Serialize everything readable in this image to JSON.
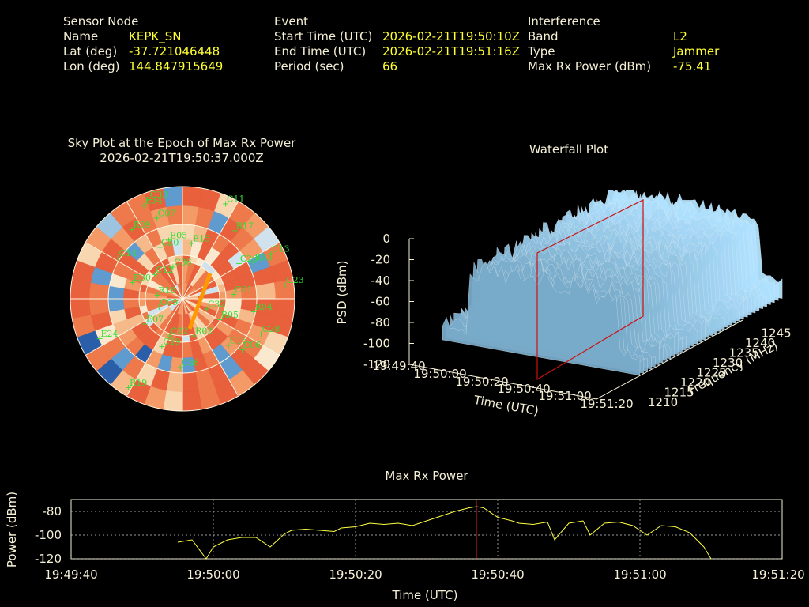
{
  "sensor": {
    "header": "Sensor Node",
    "name_label": "Name",
    "name": "KEPK_SN",
    "lat_label": "Lat (deg)",
    "lat": "-37.721046448",
    "lon_label": "Lon (deg)",
    "lon": "144.847915649"
  },
  "event": {
    "header": "Event",
    "start_label": "Start Time (UTC)",
    "start": "2026-02-21T19:50:10Z",
    "end_label": "End Time (UTC)",
    "end": "2026-02-21T19:51:16Z",
    "period_label": "Period (sec)",
    "period": "66"
  },
  "interference": {
    "header": "Interference",
    "band_label": "Band",
    "band": "L2",
    "type_label": "Type",
    "type": "Jammer",
    "maxrx_label": "Max Rx Power (dBm)",
    "maxrx": "-75.41"
  },
  "skyplot": {
    "title": "Sky Plot at the Epoch of Max Rx Power",
    "epoch": "2026-02-21T19:50:37.000Z",
    "satellites": [
      "R05",
      "C20",
      "E07",
      "E05",
      "C16",
      "C07",
      "C06",
      "C09",
      "R09",
      "C12",
      "C01",
      "C14",
      "E30",
      "C28",
      "R17",
      "C38",
      "R04",
      "E15",
      "C32",
      "R02",
      "E34",
      "C22",
      "C13",
      "R03",
      "C19",
      "R18",
      "C11",
      "E24",
      "R19",
      "C36",
      "C23",
      "C33",
      "C26"
    ]
  },
  "waterfall": {
    "title": "Waterfall Plot",
    "z_label": "PSD (dBm)",
    "x_label": "Time (UTC)",
    "y_label": "Frequency (MHz)",
    "z_ticks": [
      "0",
      "-20",
      "-40",
      "-60",
      "-80",
      "-100",
      "-120"
    ],
    "time_ticks": [
      "19:49:40",
      "19:50:00",
      "19:50:20",
      "19:50:40",
      "19:51:00",
      "19:51:20"
    ],
    "freq_ticks": [
      "1210",
      "1215",
      "1220",
      "1225",
      "1230",
      "1235",
      "1240",
      "1245"
    ]
  },
  "colors": {
    "background": "#000000",
    "text": "#f5f0d6",
    "value": "#ffff33",
    "series": "#ffff44",
    "marker": "#ee2222",
    "satellite": "#33dd33"
  },
  "chart_data": {
    "type": "line",
    "title": "Max Rx Power",
    "xlabel": "Time (UTC)",
    "ylabel": "Power (dBm)",
    "x_ticks": [
      "19:49:40",
      "19:50:00",
      "19:50:20",
      "19:50:40",
      "19:51:00",
      "19:51:20"
    ],
    "y_ticks": [
      "-80",
      "-100",
      "-120"
    ],
    "ylim": [
      -120,
      -70
    ],
    "xlim": [
      "19:49:40",
      "19:51:20"
    ],
    "grid": true,
    "marker_time": "19:50:37",
    "series": [
      {
        "x": [
          "19:49:55",
          "19:49:57",
          "19:49:59",
          "19:50:00",
          "19:50:02",
          "19:50:04",
          "19:50:06",
          "19:50:08",
          "19:50:10",
          "19:50:11",
          "19:50:13",
          "19:50:15",
          "19:50:17",
          "19:50:18",
          "19:50:20",
          "19:50:22",
          "19:50:24",
          "19:50:26",
          "19:50:28",
          "19:50:30",
          "19:50:32",
          "19:50:34",
          "19:50:36",
          "19:50:37",
          "19:50:38",
          "19:50:40",
          "19:50:42",
          "19:50:43",
          "19:50:45",
          "19:50:47",
          "19:50:48",
          "19:50:50",
          "19:50:52",
          "19:50:53",
          "19:50:55",
          "19:50:57",
          "19:50:59",
          "19:51:01",
          "19:51:03",
          "19:51:05",
          "19:51:07",
          "19:51:09",
          "19:51:10"
        ],
        "y": [
          -106,
          -104,
          -120,
          -110,
          -104,
          -102,
          -102,
          -110,
          -99,
          -96,
          -95,
          -96,
          -97,
          -94,
          -93,
          -90,
          -91,
          -90,
          -92,
          -88,
          -84,
          -80,
          -77,
          -76,
          -77,
          -85,
          -88,
          -90,
          -91,
          -89,
          -104,
          -90,
          -88,
          -100,
          -90,
          -89,
          -92,
          -100,
          -92,
          -93,
          -98,
          -110,
          -120
        ]
      }
    ]
  }
}
